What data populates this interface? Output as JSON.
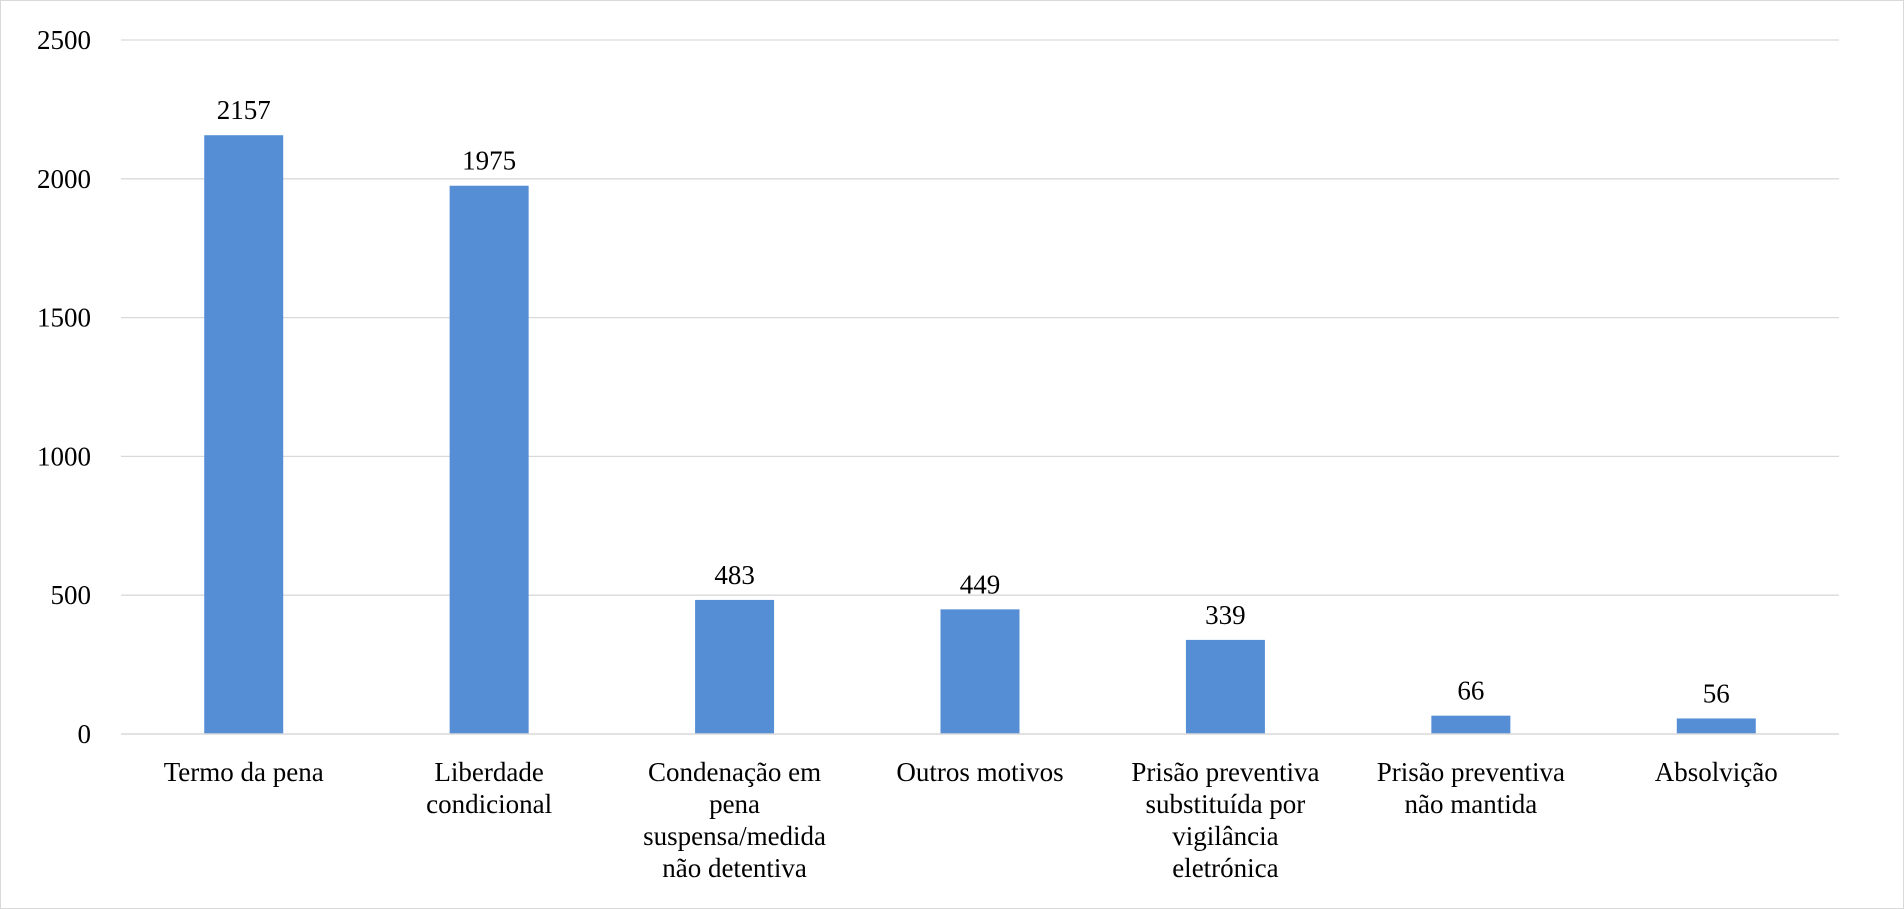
{
  "chart_data": {
    "type": "bar",
    "categories": [
      "Termo da pena",
      "Liberdade condicional",
      "Condenação em pena suspensa/medida não detentiva",
      "Outros motivos",
      "Prisão preventiva substituída por vigilância eletrónica",
      "Prisão preventiva não mantida",
      "Absolvição"
    ],
    "category_lines": [
      [
        "Termo da pena"
      ],
      [
        "Liberdade",
        "condicional"
      ],
      [
        "Condenação em",
        "pena",
        "suspensa/medida",
        "não detentiva"
      ],
      [
        "Outros motivos"
      ],
      [
        "Prisão preventiva",
        "substituída por",
        "vigilância",
        "eletrónica"
      ],
      [
        "Prisão preventiva",
        "não mantida"
      ],
      [
        "Absolvição"
      ]
    ],
    "values": [
      2157,
      1975,
      483,
      449,
      339,
      66,
      56
    ],
    "data_labels": [
      "2157",
      "1975",
      "483",
      "449",
      "339",
      "66",
      "56"
    ],
    "yticks": [
      0,
      500,
      1000,
      1500,
      2000,
      2500
    ],
    "ylim": [
      0,
      2500
    ],
    "grid": true,
    "legend": "none",
    "bar_color": "#558ed5",
    "grid_color": "#d9d9d9",
    "axis_color": "#d9d9d9"
  }
}
